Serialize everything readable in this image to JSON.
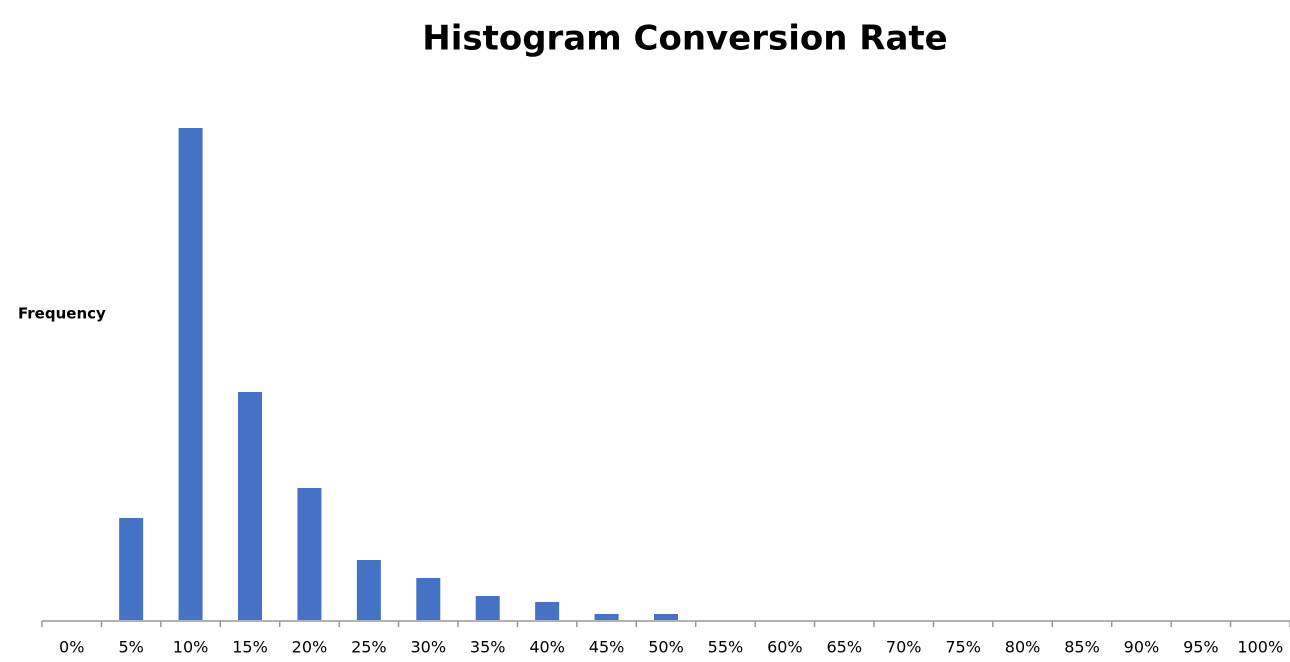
{
  "chart_data": {
    "type": "bar",
    "title": "Histogram Conversion Rate",
    "y_label": "Frequency",
    "categories": [
      "0%",
      "5%",
      "10%",
      "15%",
      "20%",
      "25%",
      "30%",
      "35%",
      "40%",
      "45%",
      "50%",
      "55%",
      "60%",
      "65%",
      "70%",
      "75%",
      "80%",
      "85%",
      "90%",
      "95%",
      "100%"
    ],
    "values": [
      0,
      17,
      82,
      38,
      22,
      10,
      7,
      4,
      3,
      1,
      1,
      0,
      0,
      0,
      0,
      0,
      0,
      0,
      0,
      0,
      0
    ],
    "color": "#4472c4",
    "ylim": [
      0,
      82
    ],
    "grid": false
  }
}
